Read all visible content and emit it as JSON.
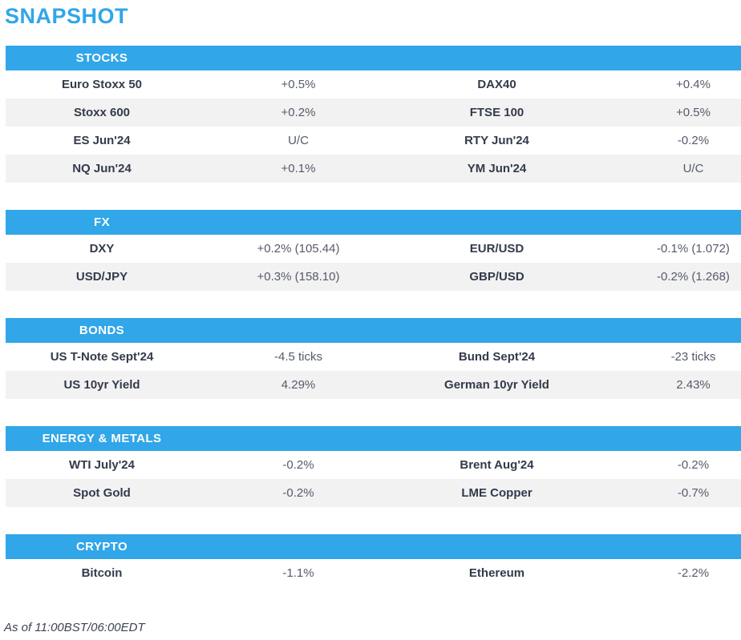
{
  "page": {
    "title": "SNAPSHOT",
    "as_of": "As of 11:00BST/06:00EDT"
  },
  "colors": {
    "accent": "#31a6e8",
    "stripe": "#f2f2f2",
    "name_text": "#333a4b",
    "value_text": "#565b6b",
    "footer_text": "#3e4454"
  },
  "sections": [
    {
      "title": "STOCKS",
      "rows": [
        [
          "Euro Stoxx 50",
          "+0.5%",
          "DAX40",
          "+0.4%"
        ],
        [
          "Stoxx 600",
          "+0.2%",
          "FTSE 100",
          "+0.5%"
        ],
        [
          "ES Jun'24",
          "U/C",
          "RTY Jun'24",
          "-0.2%"
        ],
        [
          "NQ Jun'24",
          "+0.1%",
          "YM Jun'24",
          "U/C"
        ]
      ]
    },
    {
      "title": "FX",
      "rows": [
        [
          "DXY",
          "+0.2% (105.44)",
          "EUR/USD",
          "-0.1% (1.072)"
        ],
        [
          "USD/JPY",
          "+0.3% (158.10)",
          "GBP/USD",
          "-0.2% (1.268)"
        ]
      ]
    },
    {
      "title": "BONDS",
      "rows": [
        [
          "US T-Note Sept'24",
          "-4.5 ticks",
          "Bund Sept'24",
          "-23 ticks"
        ],
        [
          "US 10yr Yield",
          "4.29%",
          "German 10yr Yield",
          "2.43%"
        ]
      ]
    },
    {
      "title": "ENERGY & METALS",
      "rows": [
        [
          "WTI July'24",
          "-0.2%",
          "Brent Aug'24",
          "-0.2%"
        ],
        [
          "Spot Gold",
          "-0.2%",
          "LME Copper",
          "-0.7%"
        ]
      ]
    },
    {
      "title": "CRYPTO",
      "rows": [
        [
          "Bitcoin",
          "-1.1%",
          "Ethereum",
          "-2.2%"
        ]
      ]
    }
  ]
}
